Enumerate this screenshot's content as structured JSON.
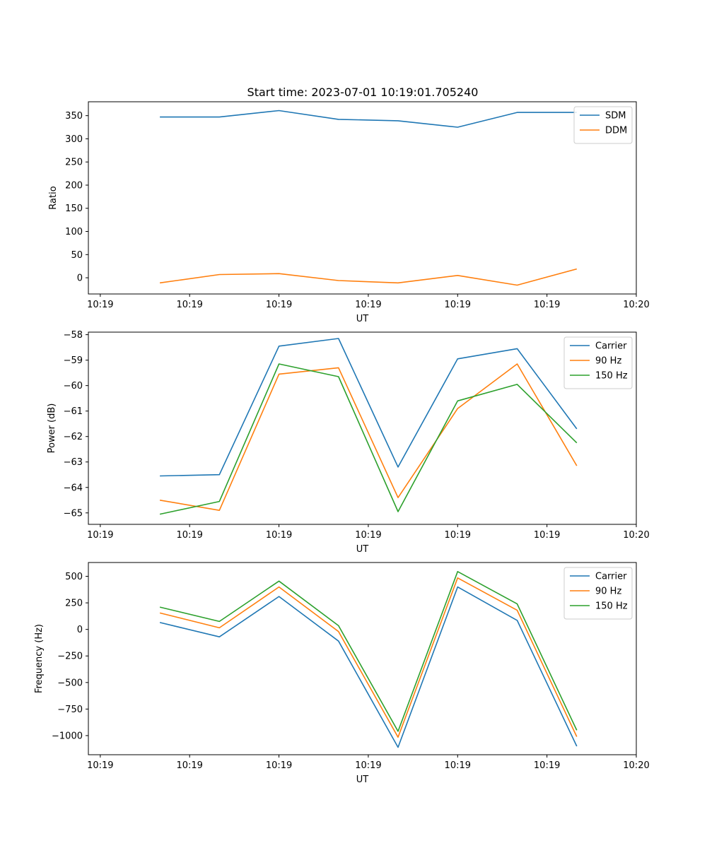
{
  "figure_title": "Start time: 2023-07-01 10:19:01.705240",
  "chart_data": [
    {
      "type": "line",
      "title": "Start time: 2023-07-01 10:19:01.705240",
      "xlabel": "UT",
      "ylabel": "Ratio",
      "x": [
        1.7,
        1.8,
        1.9,
        2.0,
        2.1,
        2.2,
        2.3,
        2.4
      ],
      "x_tick_values": [
        1.6,
        1.75,
        1.9,
        2.05,
        2.2,
        2.35,
        2.5
      ],
      "x_tick_labels": [
        "10:19",
        "10:19",
        "10:19",
        "10:19",
        "10:19",
        "10:19",
        "10:20"
      ],
      "xlim": [
        1.58,
        2.5
      ],
      "ylim": [
        -35,
        380
      ],
      "y_ticks": [
        0,
        50,
        100,
        150,
        200,
        250,
        300,
        350
      ],
      "legend_position": "upper-right",
      "grid": false,
      "series": [
        {
          "name": "SDM",
          "color": "#1f77b4",
          "values": [
            347,
            347,
            361,
            342,
            339,
            325,
            357,
            357
          ]
        },
        {
          "name": "DDM",
          "color": "#ff7f0e",
          "values": [
            -11,
            7,
            9,
            -6,
            -11,
            5,
            -16,
            19
          ]
        }
      ]
    },
    {
      "type": "line",
      "title": "",
      "xlabel": "UT",
      "ylabel": "Power (dB)",
      "x": [
        1.7,
        1.8,
        1.9,
        2.0,
        2.1,
        2.2,
        2.3,
        2.4
      ],
      "x_tick_values": [
        1.6,
        1.75,
        1.9,
        2.05,
        2.2,
        2.35,
        2.5
      ],
      "x_tick_labels": [
        "10:19",
        "10:19",
        "10:19",
        "10:19",
        "10:19",
        "10:19",
        "10:20"
      ],
      "xlim": [
        1.58,
        2.5
      ],
      "ylim": [
        -65.45,
        -57.9
      ],
      "y_ticks": [
        -65,
        -64,
        -63,
        -62,
        -61,
        -60,
        -59,
        -58
      ],
      "legend_position": "upper-right",
      "grid": false,
      "series": [
        {
          "name": "Carrier",
          "color": "#1f77b4",
          "values": [
            -63.55,
            -63.5,
            -58.45,
            -58.15,
            -63.2,
            -58.95,
            -58.55,
            -61.7
          ]
        },
        {
          "name": "90 Hz",
          "color": "#ff7f0e",
          "values": [
            -64.5,
            -64.9,
            -59.55,
            -59.3,
            -64.4,
            -60.9,
            -59.15,
            -63.15
          ]
        },
        {
          "name": "150 Hz",
          "color": "#2ca02c",
          "values": [
            -65.05,
            -64.55,
            -59.15,
            -59.65,
            -64.95,
            -60.6,
            -59.95,
            -62.25
          ]
        }
      ]
    },
    {
      "type": "line",
      "title": "",
      "xlabel": "UT",
      "ylabel": "Frequency (Hz)",
      "x": [
        1.7,
        1.8,
        1.9,
        2.0,
        2.1,
        2.2,
        2.3,
        2.4
      ],
      "x_tick_values": [
        1.6,
        1.75,
        1.9,
        2.05,
        2.2,
        2.35,
        2.5
      ],
      "x_tick_labels": [
        "10:19",
        "10:19",
        "10:19",
        "10:19",
        "10:19",
        "10:19",
        "10:20"
      ],
      "xlim": [
        1.58,
        2.5
      ],
      "ylim": [
        -1180,
        630
      ],
      "y_ticks": [
        -1000,
        -750,
        -500,
        -250,
        0,
        250,
        500
      ],
      "legend_position": "upper-right",
      "grid": false,
      "series": [
        {
          "name": "Carrier",
          "color": "#1f77b4",
          "values": [
            65,
            -70,
            310,
            -110,
            -1110,
            400,
            85,
            -1100
          ]
        },
        {
          "name": "90 Hz",
          "color": "#ff7f0e",
          "values": [
            155,
            15,
            400,
            -20,
            -1015,
            485,
            180,
            -1010
          ]
        },
        {
          "name": "150 Hz",
          "color": "#2ca02c",
          "values": [
            210,
            75,
            455,
            35,
            -960,
            545,
            240,
            -950
          ]
        }
      ]
    }
  ]
}
